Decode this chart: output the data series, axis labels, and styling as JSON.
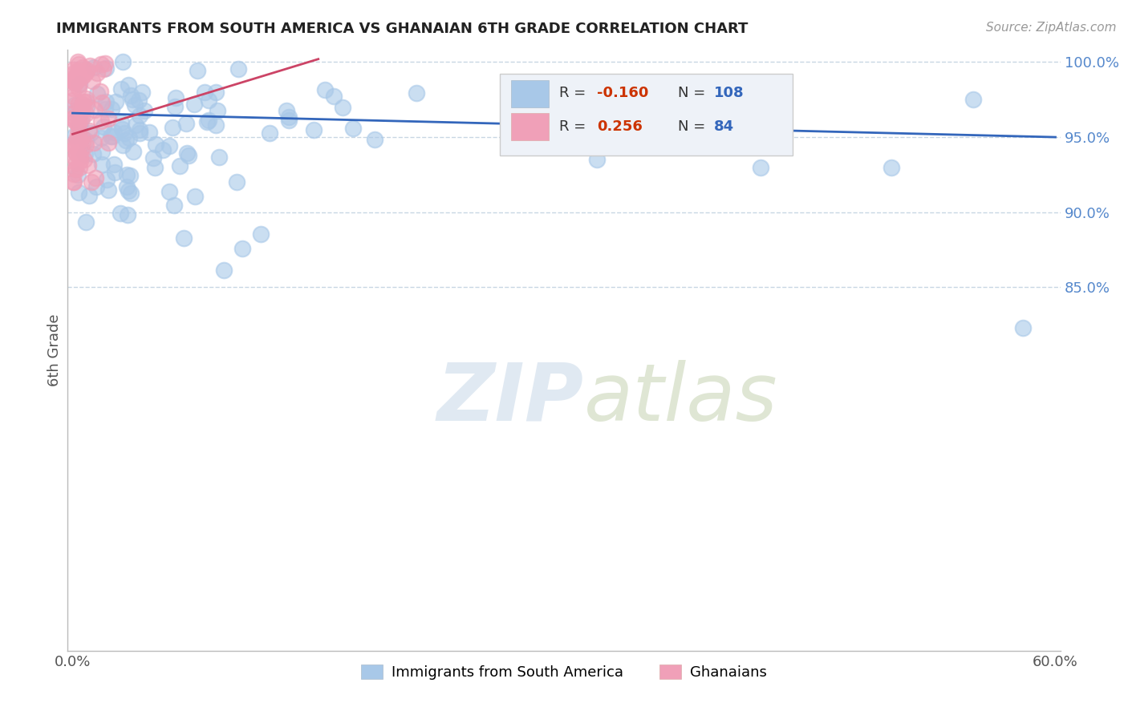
{
  "title": "IMMIGRANTS FROM SOUTH AMERICA VS GHANAIAN 6TH GRADE CORRELATION CHART",
  "source": "Source: ZipAtlas.com",
  "ylabel": "6th Grade",
  "x_min": -0.003,
  "x_max": 0.603,
  "y_min": 0.608,
  "y_max": 1.008,
  "x_ticks": [
    0.0,
    0.6
  ],
  "x_tick_labels": [
    "0.0%",
    "60.0%"
  ],
  "y_ticks": [
    0.85,
    0.9,
    0.95,
    1.0
  ],
  "y_tick_labels": [
    "85.0%",
    "90.0%",
    "95.0%",
    "100.0%"
  ],
  "legend_labels": [
    "Immigrants from South America",
    "Ghanaians"
  ],
  "blue_color": "#a8c8e8",
  "pink_color": "#f0a0b8",
  "blue_line_color": "#3366bb",
  "pink_line_color": "#cc4466",
  "r_blue": "-0.160",
  "n_blue": "108",
  "r_pink": "0.256",
  "n_pink": "84"
}
